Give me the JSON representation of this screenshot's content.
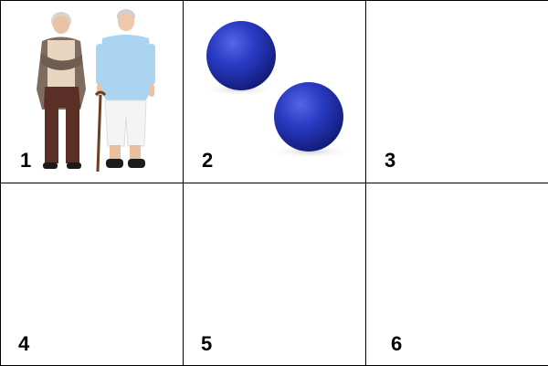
{
  "cells": [
    {
      "number": "1",
      "content": "two-elderly-women-image"
    },
    {
      "number": "2",
      "content": "two-blue-balls-image"
    },
    {
      "number": "3",
      "content": ""
    },
    {
      "number": "4",
      "content": ""
    },
    {
      "number": "5",
      "content": ""
    },
    {
      "number": "6",
      "content": ""
    }
  ],
  "colors": {
    "border": "#000000",
    "ball": "#2233b3",
    "background": "#ffffff"
  }
}
